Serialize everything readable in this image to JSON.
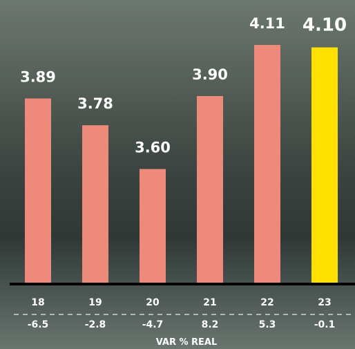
{
  "chart_data": {
    "type": "bar",
    "categories": [
      "18",
      "19",
      "20",
      "21",
      "22",
      "23"
    ],
    "values": [
      3.89,
      3.78,
      3.6,
      3.9,
      4.11,
      4.1
    ],
    "value_labels": [
      "3.89",
      "3.78",
      "3.60",
      "3.90",
      "4.11",
      "4.10"
    ],
    "secondary_row": {
      "label": "VAR % REAL",
      "values": [
        "-6.5",
        "-2.8",
        "-4.7",
        "8.2",
        "5.3",
        "-0.1"
      ]
    },
    "highlight_category": "23",
    "ylim": [
      3.13,
      4.13
    ],
    "grid": false,
    "colors": {
      "bar": "#ee8a7c",
      "highlight": "#ffe000",
      "axis": "#000000",
      "text": "#ffffff",
      "highlight_text": "#ffffff"
    }
  }
}
